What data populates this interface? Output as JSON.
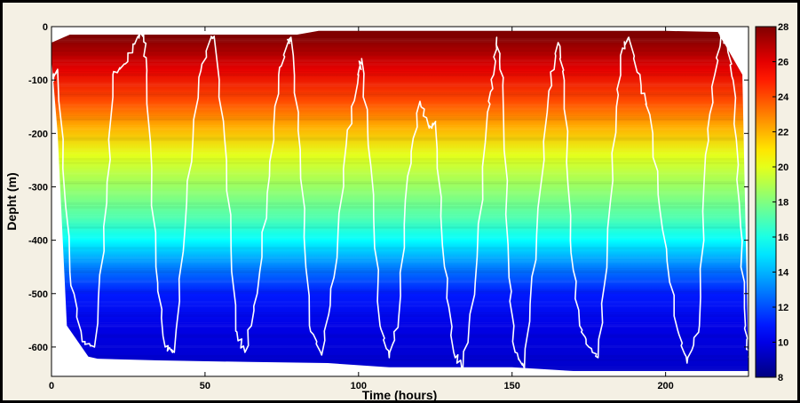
{
  "chart_data": {
    "type": "heatmap",
    "title": "",
    "xlabel": "Time (hours)",
    "ylabel": "Depht (m)",
    "xlim": [
      0,
      227
    ],
    "ylim": [
      -655,
      0
    ],
    "x_ticks": [
      0,
      50,
      100,
      150,
      200
    ],
    "y_ticks": [
      0,
      -100,
      -200,
      -300,
      -400,
      -500,
      -600
    ],
    "colorbar": {
      "label": "",
      "range": [
        8,
        28
      ],
      "ticks": [
        8,
        10,
        12,
        14,
        16,
        18,
        20,
        22,
        24,
        26,
        28
      ],
      "colormap": "jet"
    },
    "temperature_profile": [
      {
        "depth": -20,
        "value": 28
      },
      {
        "depth": -80,
        "value": 26
      },
      {
        "depth": -140,
        "value": 24
      },
      {
        "depth": -190,
        "value": 22
      },
      {
        "depth": -240,
        "value": 20
      },
      {
        "depth": -300,
        "value": 18.5
      },
      {
        "depth": -360,
        "value": 17
      },
      {
        "depth": -400,
        "value": 15.5
      },
      {
        "depth": -450,
        "value": 13
      },
      {
        "depth": -500,
        "value": 11
      },
      {
        "depth": -560,
        "value": 10
      },
      {
        "depth": -640,
        "value": 9.5
      }
    ],
    "data_boundary": {
      "top": [
        {
          "x": 0,
          "y": -30
        },
        {
          "x": 6,
          "y": -15
        },
        {
          "x": 80,
          "y": -15
        },
        {
          "x": 87,
          "y": -8
        },
        {
          "x": 200,
          "y": -8
        },
        {
          "x": 217,
          "y": -10
        },
        {
          "x": 225,
          "y": -90
        }
      ],
      "bottom": [
        {
          "x": 227,
          "y": -645
        },
        {
          "x": 170,
          "y": -645
        },
        {
          "x": 150,
          "y": -638
        },
        {
          "x": 110,
          "y": -638
        },
        {
          "x": 90,
          "y": -630
        },
        {
          "x": 65,
          "y": -628
        },
        {
          "x": 35,
          "y": -625
        },
        {
          "x": 15,
          "y": -622
        },
        {
          "x": 12,
          "y": -618
        },
        {
          "x": 5,
          "y": -560
        },
        {
          "x": 2,
          "y": -200
        },
        {
          "x": 0,
          "y": -60
        }
      ]
    },
    "series": [
      {
        "style": "white-line",
        "x": [
          0,
          2,
          6,
          10,
          14,
          18,
          20,
          24,
          28,
          30,
          31,
          34,
          37,
          40,
          44,
          48,
          52,
          53,
          57,
          60,
          63,
          67,
          71,
          74,
          77,
          78,
          81,
          84,
          88,
          92,
          96,
          100,
          101,
          104,
          107,
          110,
          113,
          116,
          120,
          123,
          125,
          128,
          131,
          134,
          138,
          142,
          144,
          145,
          147,
          149,
          151,
          154,
          158,
          162,
          165,
          167,
          169,
          172,
          175,
          178,
          181,
          184,
          186,
          188,
          192,
          195,
          199,
          204,
          207,
          211,
          213,
          216,
          218,
          220,
          222,
          224,
          226,
          227
        ],
        "y": [
          -100,
          -80,
          -460,
          -590,
          -600,
          -330,
          -90,
          -70,
          -20,
          -10,
          -90,
          -450,
          -600,
          -610,
          -330,
          -95,
          -20,
          -20,
          -250,
          -570,
          -610,
          -500,
          -280,
          -90,
          -30,
          -20,
          -230,
          -560,
          -615,
          -470,
          -220,
          -90,
          -60,
          -260,
          -560,
          -620,
          -550,
          -280,
          -140,
          -190,
          -180,
          -450,
          -610,
          -640,
          -480,
          -160,
          -90,
          -20,
          -110,
          -470,
          -610,
          -640,
          -390,
          -120,
          -30,
          -100,
          -400,
          -560,
          -600,
          -620,
          -420,
          -150,
          -40,
          -20,
          -110,
          -170,
          -380,
          -570,
          -630,
          -560,
          -240,
          -90,
          -20,
          -30,
          -100,
          -330,
          -560,
          -620
        ]
      }
    ]
  }
}
